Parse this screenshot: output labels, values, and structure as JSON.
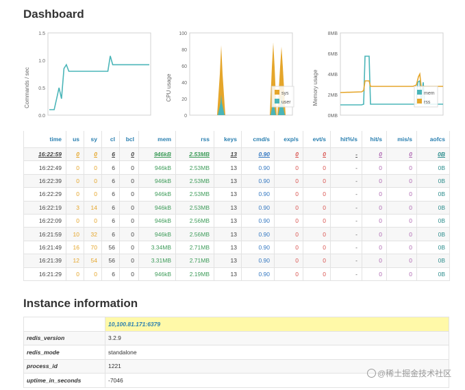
{
  "page": {
    "title": "Dashboard",
    "instance_title": "Instance information"
  },
  "chart_data": [
    {
      "type": "line",
      "ylabel": "Commands / sec",
      "ylim": [
        0,
        1.5
      ],
      "yticks": [
        "1.5",
        "1.0",
        "0.5",
        "0.0"
      ],
      "series": [
        {
          "values": [
            0.1,
            0.1,
            0.1,
            0.3,
            0.5,
            0.3,
            0.85,
            0.92,
            0.8,
            0.8,
            0.8,
            0.8,
            0.8,
            0.8,
            0.8,
            0.8,
            0.8,
            0.8,
            0.8,
            0.8,
            0.8,
            0.8,
            0.8,
            0.8,
            0.8,
            1.08,
            0.92,
            0.92,
            0.92,
            0.92,
            0.92,
            0.92,
            0.92,
            0.92,
            0.92,
            0.92,
            0.92,
            0.92,
            0.92,
            0.92,
            0.92,
            0.92
          ]
        }
      ],
      "colors": {
        "line": "#4ab5b8"
      }
    },
    {
      "type": "area",
      "ylabel": "CPU usage",
      "ylim": [
        0,
        100
      ],
      "yticks": [
        "100",
        "80",
        "60",
        "40",
        "20",
        "0"
      ],
      "series": [
        {
          "name": "sys",
          "color": "#e5a62b"
        },
        {
          "name": "user",
          "color": "#4ab5b8"
        }
      ],
      "legend": "bottom-right"
    },
    {
      "type": "line",
      "ylabel": "Memory usage",
      "ylim": [
        0,
        8
      ],
      "yticks": [
        "8MB",
        "6MB",
        "4MB",
        "2MB",
        "0MB"
      ],
      "series": [
        {
          "name": "mem",
          "color": "#4ab5b8"
        },
        {
          "name": "rss",
          "color": "#e5a62b"
        }
      ],
      "legend": "bottom-right"
    }
  ],
  "stats": {
    "headers": [
      "time",
      "us",
      "sy",
      "cl",
      "bcl",
      "mem",
      "rss",
      "keys",
      "cmd/s",
      "exp/s",
      "evt/s",
      "hit%/s",
      "hit/s",
      "mis/s",
      "aofcs"
    ],
    "rows": [
      [
        "16:22:59",
        "0",
        "0",
        "6",
        "0",
        "946kB",
        "2.53MB",
        "13",
        "0.90",
        "0",
        "0",
        "-",
        "0",
        "0",
        "0B"
      ],
      [
        "16:22:49",
        "0",
        "0",
        "6",
        "0",
        "946kB",
        "2.53MB",
        "13",
        "0.90",
        "0",
        "0",
        "-",
        "0",
        "0",
        "0B"
      ],
      [
        "16:22:39",
        "0",
        "0",
        "6",
        "0",
        "946kB",
        "2.53MB",
        "13",
        "0.90",
        "0",
        "0",
        "-",
        "0",
        "0",
        "0B"
      ],
      [
        "16:22:29",
        "0",
        "0",
        "6",
        "0",
        "946kB",
        "2.53MB",
        "13",
        "0.90",
        "0",
        "0",
        "-",
        "0",
        "0",
        "0B"
      ],
      [
        "16:22:19",
        "3",
        "14",
        "6",
        "0",
        "946kB",
        "2.53MB",
        "13",
        "0.90",
        "0",
        "0",
        "-",
        "0",
        "0",
        "0B"
      ],
      [
        "16:22:09",
        "0",
        "0",
        "6",
        "0",
        "946kB",
        "2.56MB",
        "13",
        "0.90",
        "0",
        "0",
        "-",
        "0",
        "0",
        "0B"
      ],
      [
        "16:21:59",
        "10",
        "32",
        "6",
        "0",
        "946kB",
        "2.56MB",
        "13",
        "0.90",
        "0",
        "0",
        "-",
        "0",
        "0",
        "0B"
      ],
      [
        "16:21:49",
        "16",
        "70",
        "56",
        "0",
        "3.34MB",
        "2.71MB",
        "13",
        "0.90",
        "0",
        "0",
        "-",
        "0",
        "0",
        "0B"
      ],
      [
        "16:21:39",
        "12",
        "54",
        "56",
        "0",
        "3.31MB",
        "2.71MB",
        "13",
        "0.90",
        "0",
        "0",
        "-",
        "0",
        "0",
        "0B"
      ],
      [
        "16:21:29",
        "0",
        "0",
        "6",
        "0",
        "946kB",
        "2.19MB",
        "13",
        "0.90",
        "0",
        "0",
        "-",
        "0",
        "0",
        "0B"
      ]
    ]
  },
  "instance": {
    "server": "10,100.81.171:6379",
    "fields": [
      {
        "key": "redis_version",
        "value": "3.2.9"
      },
      {
        "key": "redis_mode",
        "value": "standalone"
      },
      {
        "key": "process_id",
        "value": "1221"
      },
      {
        "key": "uptime_in_seconds",
        "value": "-7046"
      }
    ]
  },
  "watermark": "@稀土掘金技术社区"
}
